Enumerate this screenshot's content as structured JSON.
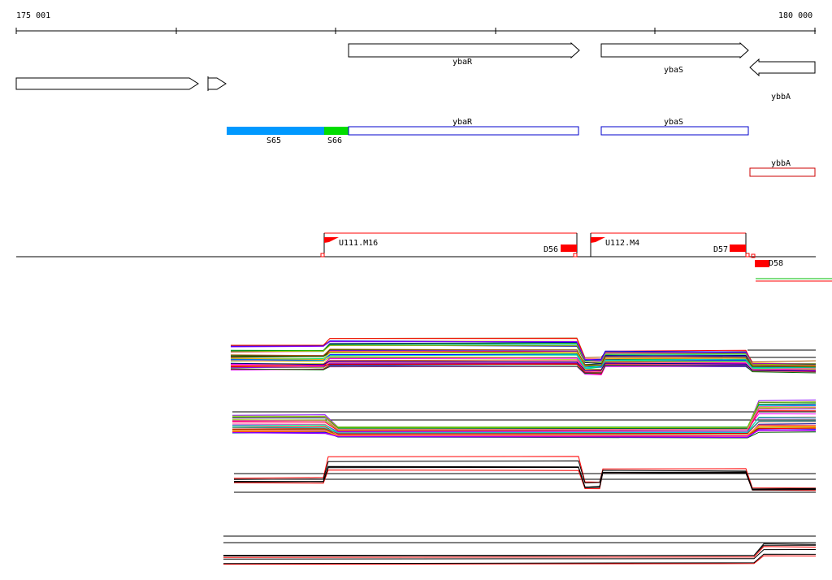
{
  "ruler": {
    "start_label": "175 001",
    "end_label": "180 000"
  },
  "genes_top": [
    {
      "id": "gene-left-1",
      "label": ""
    },
    {
      "id": "gene-left-2",
      "label": ""
    },
    {
      "id": "ybaR",
      "label": "ybaR"
    },
    {
      "id": "ybaS",
      "label": "ybaS"
    },
    {
      "id": "ybbA",
      "label": "ybbA"
    }
  ],
  "features": [
    {
      "id": "S65",
      "label": "S65",
      "color": "#0099ff"
    },
    {
      "id": "S66",
      "label": "S66",
      "color": "#00dd00"
    },
    {
      "id": "ybaR",
      "label": "ybaR",
      "color": "#0000cc"
    },
    {
      "id": "ybaS",
      "label": "ybaS",
      "color": "#0000cc"
    },
    {
      "id": "ybbA",
      "label": "ybbA",
      "color": "#cc0000"
    }
  ],
  "transcripts": [
    {
      "id": "U111",
      "label": "U111.M16",
      "end_label": "D56"
    },
    {
      "id": "U112",
      "label": "U112.M4",
      "end_label": "D57"
    },
    {
      "id": "U113",
      "label": "",
      "end_label": "D58"
    }
  ],
  "colors": {
    "accent_red": "#ff0000",
    "feature_blue": "#0099ff",
    "feature_green": "#00dd00",
    "outline_blue": "#0000cc",
    "outline_red": "#cc0000"
  }
}
